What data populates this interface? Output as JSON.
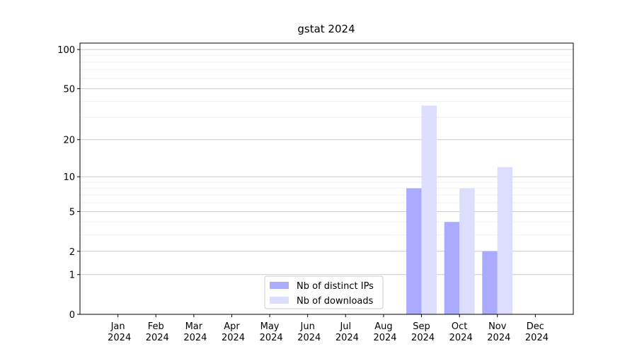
{
  "chart_data": {
    "type": "bar",
    "title": "gstat 2024",
    "categories": [
      "Jan 2024",
      "Feb 2024",
      "Mar 2024",
      "Apr 2024",
      "May 2024",
      "Jun 2024",
      "Jul 2024",
      "Aug 2024",
      "Sep 2024",
      "Oct 2024",
      "Nov 2024",
      "Dec 2024"
    ],
    "series": [
      {
        "name": "Nb of distinct IPs",
        "color": "#aaaaff",
        "values": [
          0,
          0,
          0,
          0,
          0,
          0,
          0,
          0,
          8,
          4,
          2,
          0
        ]
      },
      {
        "name": "Nb of downloads",
        "color": "#ddddff",
        "values": [
          0,
          0,
          0,
          0,
          0,
          0,
          0,
          0,
          37,
          8,
          12,
          0
        ]
      }
    ],
    "yscale": "log1p",
    "ylim": [
      0,
      112
    ],
    "yticks": [
      0,
      1,
      2,
      5,
      10,
      20,
      50,
      100
    ],
    "minor_yticks": [
      3,
      4,
      6,
      7,
      8,
      9,
      30,
      40,
      60,
      70,
      80,
      90
    ],
    "grid": true,
    "legend": "lower center"
  }
}
